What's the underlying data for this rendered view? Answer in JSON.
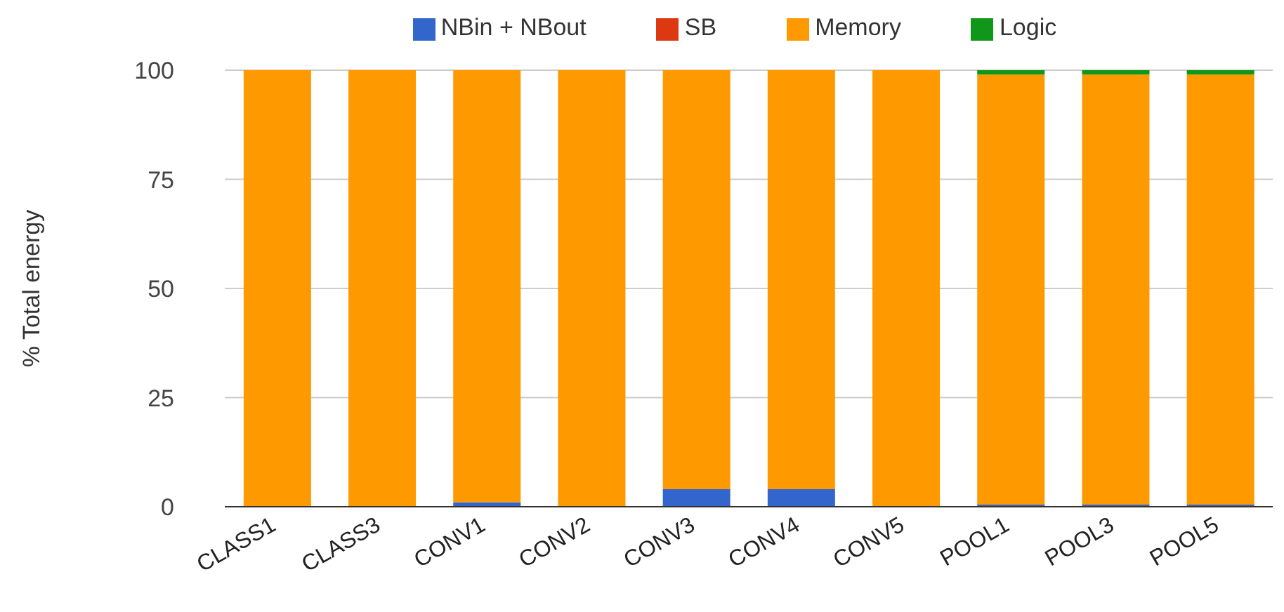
{
  "chart_data": {
    "type": "bar",
    "stacked": true,
    "ylabel": "% Total energy",
    "categories": [
      "CLASS1",
      "CLASS3",
      "CONV1",
      "CONV2",
      "CONV3",
      "CONV4",
      "CONV5",
      "POOL1",
      "POOL3",
      "POOL5"
    ],
    "series": [
      {
        "name": "NBin + NBout",
        "color": "#3366cc",
        "values": [
          0,
          0,
          1,
          0,
          4,
          4,
          0,
          0.5,
          0.5,
          0.5
        ]
      },
      {
        "name": "SB",
        "color": "#dc3912",
        "values": [
          0,
          0,
          0,
          0,
          0,
          0,
          0,
          0,
          0,
          0
        ]
      },
      {
        "name": "Memory",
        "color": "#ff9900",
        "values": [
          100,
          100,
          99,
          100,
          96,
          96,
          100,
          98.5,
          98.5,
          98.5
        ]
      },
      {
        "name": "Logic",
        "color": "#109618",
        "values": [
          0,
          0,
          0,
          0,
          0,
          0,
          0,
          1,
          1,
          1
        ]
      }
    ],
    "ylim": [
      0,
      100
    ],
    "yticks": [
      0,
      25,
      50,
      75,
      100
    ],
    "grid": "y",
    "legend": "top"
  }
}
